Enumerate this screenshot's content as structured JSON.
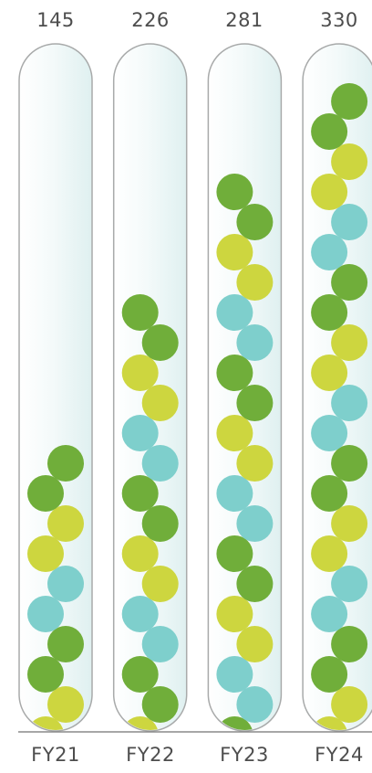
{
  "chart_data": {
    "type": "bar",
    "categories": [
      "FY21",
      "FY22",
      "FY23",
      "FY24"
    ],
    "values": [
      145,
      226,
      281,
      330
    ],
    "title": "",
    "xlabel": "",
    "ylabel": "",
    "grid": false,
    "legend": "none",
    "colors": {
      "ball_green": "#70ae3a",
      "ball_yellow": "#cdd63f",
      "ball_teal": "#7ecfcc",
      "tube_fill": "#edf6f6",
      "tube_stroke": "#a8aaaa",
      "axis": "#8a8a8a",
      "text": "#4d4d4d"
    }
  }
}
